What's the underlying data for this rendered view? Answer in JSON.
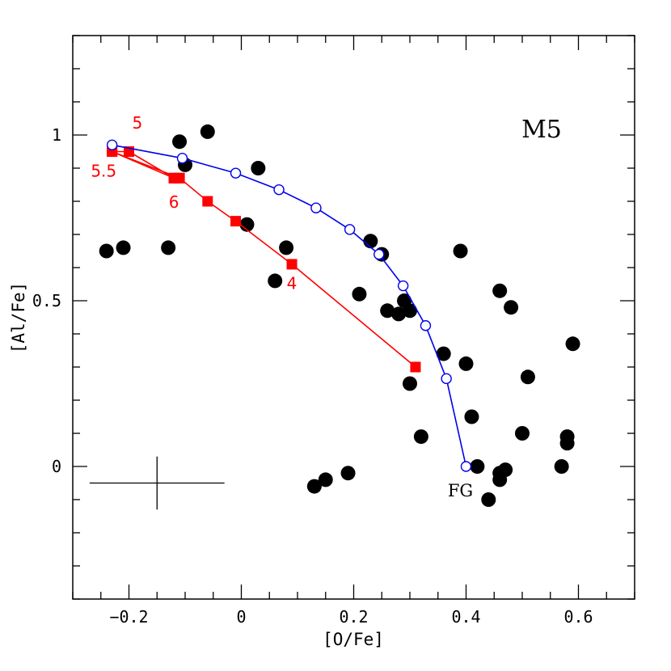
{
  "chart_data": {
    "type": "scatter",
    "title": "M5",
    "xlabel": "[O/Fe]",
    "ylabel": "[Al/Fe]",
    "xlim": [
      -0.3,
      0.7
    ],
    "ylim": [
      -0.4,
      1.3
    ],
    "xticks": [
      -0.2,
      0,
      0.2,
      0.4,
      0.6
    ],
    "xtick_labels": [
      "−0.2",
      "0",
      "0.2",
      "0.4",
      "0.6"
    ],
    "yticks": [
      0,
      0.5,
      1
    ],
    "ytick_labels": [
      "0",
      "0.5",
      "1"
    ],
    "x_minor_step": 0.05,
    "y_minor_step": 0.1,
    "grid": false,
    "series": [
      {
        "name": "stars",
        "kind": "scatter",
        "marker": "filled-circle",
        "color": "#000000",
        "points": [
          [
            -0.24,
            0.65
          ],
          [
            -0.21,
            0.66
          ],
          [
            -0.13,
            0.66
          ],
          [
            -0.11,
            0.98
          ],
          [
            -0.1,
            0.91
          ],
          [
            -0.06,
            1.01
          ],
          [
            0.01,
            0.73
          ],
          [
            0.03,
            0.9
          ],
          [
            0.06,
            0.56
          ],
          [
            0.08,
            0.66
          ],
          [
            0.13,
            -0.06
          ],
          [
            0.15,
            -0.04
          ],
          [
            0.19,
            -0.02
          ],
          [
            0.21,
            0.52
          ],
          [
            0.23,
            0.68
          ],
          [
            0.25,
            0.64
          ],
          [
            0.26,
            0.47
          ],
          [
            0.28,
            0.46
          ],
          [
            0.29,
            0.5
          ],
          [
            0.3,
            0.47
          ],
          [
            0.3,
            0.25
          ],
          [
            0.32,
            0.09
          ],
          [
            0.36,
            0.34
          ],
          [
            0.39,
            0.65
          ],
          [
            0.4,
            0.31
          ],
          [
            0.41,
            0.15
          ],
          [
            0.42,
            0.0
          ],
          [
            0.44,
            -0.1
          ],
          [
            0.46,
            0.53
          ],
          [
            0.46,
            -0.04
          ],
          [
            0.46,
            -0.02
          ],
          [
            0.47,
            -0.01
          ],
          [
            0.48,
            0.48
          ],
          [
            0.5,
            0.1
          ],
          [
            0.51,
            0.27
          ],
          [
            0.57,
            0.0
          ],
          [
            0.58,
            0.09
          ],
          [
            0.58,
            0.07
          ],
          [
            0.59,
            0.37
          ]
        ]
      },
      {
        "name": "model-blue",
        "kind": "line",
        "marker": "open-circle",
        "color": "#0000ee",
        "points": [
          [
            0.4,
            0.0
          ],
          [
            0.365,
            0.265
          ],
          [
            0.328,
            0.425
          ],
          [
            0.288,
            0.545
          ],
          [
            0.245,
            0.64
          ],
          [
            0.193,
            0.715
          ],
          [
            0.133,
            0.78
          ],
          [
            0.067,
            0.835
          ],
          [
            -0.01,
            0.885
          ],
          [
            -0.105,
            0.93
          ],
          [
            -0.23,
            0.97
          ]
        ]
      },
      {
        "name": "model-red",
        "kind": "line",
        "marker": "filled-square",
        "color": "#ff0000",
        "points": [
          [
            0.31,
            0.3
          ],
          [
            0.09,
            0.61
          ],
          [
            -0.01,
            0.74
          ],
          [
            -0.06,
            0.8
          ],
          [
            -0.11,
            0.87
          ],
          [
            -0.12,
            0.87
          ],
          [
            -0.2,
            0.95
          ],
          [
            -0.23,
            0.95
          ],
          [
            -0.12,
            0.87
          ],
          [
            -0.11,
            0.87
          ],
          [
            -0.23,
            0.95
          ]
        ]
      }
    ],
    "annotations": [
      {
        "text": "5",
        "x": -0.185,
        "y": 1.02,
        "color": "#ff0000"
      },
      {
        "text": "5.5",
        "x": -0.245,
        "y": 0.875,
        "color": "#ff0000"
      },
      {
        "text": "6",
        "x": -0.12,
        "y": 0.78,
        "color": "#ff0000"
      },
      {
        "text": "4",
        "x": 0.09,
        "y": 0.535,
        "color": "#ff0000"
      },
      {
        "text": "FG",
        "x": 0.39,
        "y": -0.09,
        "color": "#000000"
      }
    ],
    "error_bar": {
      "x": -0.15,
      "y": -0.05,
      "x_err": 0.12,
      "y_err": 0.08
    }
  }
}
